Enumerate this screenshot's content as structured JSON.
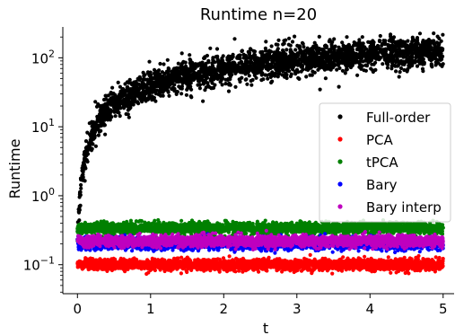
{
  "chart_data": {
    "type": "scatter",
    "title": "Runtime n=20",
    "xlabel": "t",
    "ylabel": "Runtime",
    "xlim": [
      -0.2,
      5.15
    ],
    "ylim": [
      0.038,
      280
    ],
    "yscale": "log",
    "grid": false,
    "legend_position": "center-right",
    "x_ticks": [
      0,
      1,
      2,
      3,
      4,
      5
    ],
    "x_tick_labels": [
      "0",
      "1",
      "2",
      "3",
      "4",
      "5"
    ],
    "y_ticks": [
      0.1,
      1,
      10,
      100
    ],
    "y_tick_labels": [
      {
        "base": "10",
        "exp": "−1"
      },
      {
        "base": "10",
        "exp": "0"
      },
      {
        "base": "10",
        "exp": "1"
      },
      {
        "base": "10",
        "exp": "2"
      }
    ],
    "series": [
      {
        "name": "Full-order",
        "color": "#000000",
        "x": [
          0.0,
          0.02,
          0.05,
          0.1,
          0.15,
          0.2,
          0.3,
          0.4,
          0.5,
          0.75,
          1.0,
          1.5,
          2.0,
          2.5,
          3.0,
          3.5,
          4.0,
          4.5,
          5.0
        ],
        "y": [
          0.2,
          0.5,
          1.6,
          3.2,
          5.5,
          8.0,
          12.5,
          17.0,
          21.0,
          31.0,
          40.0,
          56.0,
          70.0,
          82.0,
          93.0,
          103.0,
          112.0,
          120.0,
          128.0
        ]
      },
      {
        "name": "PCA",
        "color": "#ff0000",
        "x": [
          0.0,
          1.0,
          2.0,
          3.0,
          4.0,
          5.0
        ],
        "y": [
          0.1,
          0.1,
          0.1,
          0.1,
          0.1,
          0.1
        ]
      },
      {
        "name": "tPCA",
        "color": "#008000",
        "x": [
          0.0,
          1.0,
          2.0,
          3.0,
          4.0,
          5.0
        ],
        "y": [
          0.34,
          0.34,
          0.34,
          0.34,
          0.34,
          0.34
        ]
      },
      {
        "name": "Bary",
        "color": "#0000ff",
        "x": [
          0.0,
          1.0,
          2.0,
          3.0,
          4.0,
          5.0
        ],
        "y": [
          0.2,
          0.2,
          0.2,
          0.2,
          0.2,
          0.2
        ]
      },
      {
        "name": "Bary interp",
        "color": "#bf00bf",
        "x": [
          0.0,
          1.0,
          2.0,
          3.0,
          4.0,
          5.0
        ],
        "y": [
          0.22,
          0.22,
          0.22,
          0.22,
          0.22,
          0.22
        ]
      }
    ]
  }
}
